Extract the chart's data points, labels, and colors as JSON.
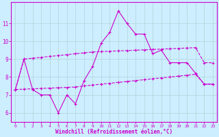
{
  "xlabel": "Windchill (Refroidissement éolien,°C)",
  "bg_color": "#cceeff",
  "grid_color": "#aacccc",
  "line_color": "#cc00cc",
  "x_values": [
    0,
    1,
    2,
    3,
    4,
    5,
    6,
    7,
    8,
    9,
    10,
    11,
    12,
    13,
    14,
    15,
    16,
    17,
    18,
    19,
    20,
    21,
    22,
    23
  ],
  "line1": [
    7.3,
    9.0,
    7.3,
    7.0,
    7.0,
    6.0,
    7.0,
    6.5,
    7.8,
    8.6,
    9.9,
    10.5,
    11.7,
    11.0,
    10.4,
    10.4,
    9.3,
    9.5,
    8.8,
    8.8,
    8.8,
    8.2,
    7.6,
    7.6
  ],
  "line2": [
    7.3,
    9.0,
    9.05,
    9.1,
    9.15,
    9.2,
    9.25,
    9.3,
    9.35,
    9.4,
    9.42,
    9.44,
    9.46,
    9.48,
    9.5,
    9.52,
    9.54,
    9.56,
    9.58,
    9.6,
    9.62,
    9.64,
    8.8,
    8.8
  ],
  "line3": [
    7.3,
    7.32,
    7.34,
    7.36,
    7.38,
    7.4,
    7.42,
    7.44,
    7.5,
    7.55,
    7.6,
    7.65,
    7.7,
    7.75,
    7.8,
    7.85,
    7.9,
    7.95,
    8.0,
    8.05,
    8.1,
    8.15,
    7.6,
    7.6
  ],
  "ylim": [
    5.5,
    12.2
  ],
  "yticks": [
    6,
    7,
    8,
    9,
    10,
    11
  ],
  "xticks": [
    0,
    1,
    2,
    3,
    4,
    5,
    6,
    7,
    8,
    9,
    10,
    11,
    12,
    13,
    14,
    15,
    16,
    17,
    18,
    19,
    20,
    21,
    22,
    23
  ]
}
